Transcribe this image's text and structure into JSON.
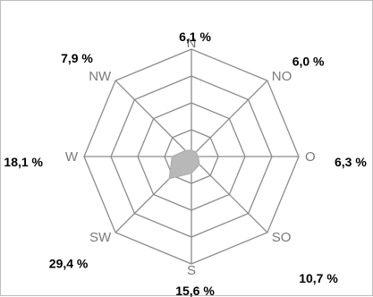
{
  "chart_data": {
    "type": "radar",
    "title": "",
    "categories": [
      "N",
      "NO",
      "O",
      "SO",
      "S",
      "SW",
      "W",
      "NW"
    ],
    "value_labels": [
      "6,1 %",
      "6,0 %",
      "6,3 %",
      "10,7 %",
      "15,6 %",
      "29,4 %",
      "18,1 %",
      "7,9 %"
    ],
    "series": [
      {
        "values": [
          6.1,
          6.0,
          6.3,
          10.7,
          15.6,
          29.4,
          18.1,
          7.9
        ]
      }
    ],
    "rmax": 100,
    "rings": 4,
    "grid": true,
    "legend": "none",
    "colors": {
      "grid": "#8c8c8c",
      "area": "#b8b8b8",
      "direction_label": "#7a7a7a",
      "value_label": "#000000"
    }
  }
}
